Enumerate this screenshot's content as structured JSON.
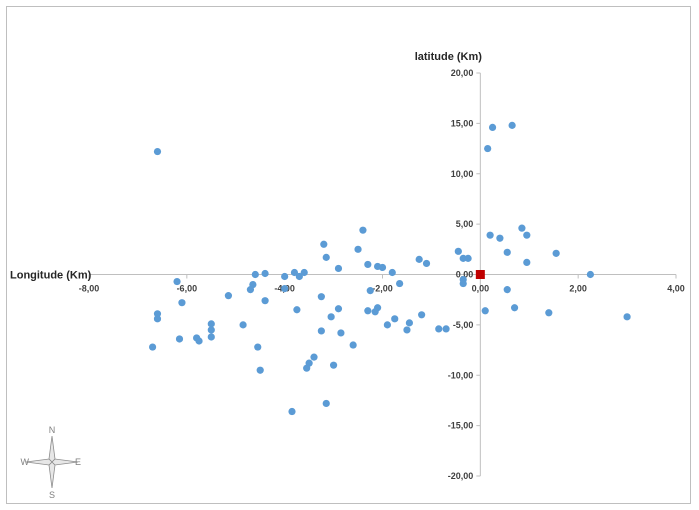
{
  "chart_data": {
    "type": "scatter",
    "title": "",
    "xlabel": "Longitude (Km)",
    "ylabel": "latitude (Km)",
    "xlim": [
      -8,
      4
    ],
    "ylim": [
      -20,
      20
    ],
    "x_ticks": [
      -8,
      -6,
      -4,
      -2,
      0,
      2,
      4
    ],
    "y_ticks": [
      -20,
      -15,
      -10,
      -5,
      0,
      5,
      10,
      15,
      20
    ],
    "x_tick_labels": [
      "-8,00",
      "-6,00",
      "-4,00",
      "-2,00",
      "0,00",
      "2,00",
      "4,00"
    ],
    "y_tick_labels": [
      "-20,00",
      "-15,00",
      "-10,00",
      "-5,00",
      "0,00",
      "5,00",
      "10,00",
      "15,00",
      "20,00"
    ],
    "grid": false,
    "legend": "none",
    "series": [
      {
        "color": "#5b9bd5",
        "marker": "circle",
        "points": [
          [
            -6.6,
            12.2
          ],
          [
            0.25,
            14.6
          ],
          [
            0.65,
            14.8
          ],
          [
            0.15,
            12.5
          ],
          [
            -2.4,
            4.4
          ],
          [
            -3.2,
            3.0
          ],
          [
            -3.15,
            1.7
          ],
          [
            -2.5,
            2.5
          ],
          [
            -2.3,
            1.0
          ],
          [
            -2.1,
            0.8
          ],
          [
            -2.0,
            0.7
          ],
          [
            -2.9,
            0.6
          ],
          [
            -3.6,
            0.2
          ],
          [
            -3.8,
            0.2
          ],
          [
            -4.0,
            -0.2
          ],
          [
            -4.4,
            0.1
          ],
          [
            -4.6,
            0.0
          ],
          [
            -3.7,
            -0.2
          ],
          [
            -1.8,
            0.2
          ],
          [
            -1.25,
            1.5
          ],
          [
            -1.1,
            1.1
          ],
          [
            -0.45,
            2.3
          ],
          [
            -0.35,
            1.6
          ],
          [
            -0.25,
            1.6
          ],
          [
            0.2,
            3.9
          ],
          [
            0.4,
            3.6
          ],
          [
            0.55,
            2.2
          ],
          [
            0.85,
            4.6
          ],
          [
            0.95,
            3.9
          ],
          [
            0.95,
            1.2
          ],
          [
            1.55,
            2.1
          ],
          [
            2.25,
            0.0
          ],
          [
            0.55,
            -1.5
          ],
          [
            -0.35,
            -0.5
          ],
          [
            -0.35,
            -0.9
          ],
          [
            -2.25,
            -1.6
          ],
          [
            -1.65,
            -0.9
          ],
          [
            -6.2,
            -0.7
          ],
          [
            -6.1,
            -2.8
          ],
          [
            -5.15,
            -2.1
          ],
          [
            -4.65,
            -1.0
          ],
          [
            -4.4,
            -2.6
          ],
          [
            -4.0,
            -1.4
          ],
          [
            -3.75,
            -3.5
          ],
          [
            -3.25,
            -2.2
          ],
          [
            -3.05,
            -4.2
          ],
          [
            -2.9,
            -3.4
          ],
          [
            -2.3,
            -3.6
          ],
          [
            -2.15,
            -3.7
          ],
          [
            -2.1,
            -3.3
          ],
          [
            -6.6,
            -3.9
          ],
          [
            -6.6,
            -4.4
          ],
          [
            -5.5,
            -4.9
          ],
          [
            -5.5,
            -5.5
          ],
          [
            -4.85,
            -5.0
          ],
          [
            -3.25,
            -5.6
          ],
          [
            -2.85,
            -5.8
          ],
          [
            -1.9,
            -5.0
          ],
          [
            -1.75,
            -4.4
          ],
          [
            -1.5,
            -5.5
          ],
          [
            -1.45,
            -4.8
          ],
          [
            -1.2,
            -4.0
          ],
          [
            -0.85,
            -5.4
          ],
          [
            -0.7,
            -5.4
          ],
          [
            0.1,
            -3.6
          ],
          [
            0.7,
            -3.3
          ],
          [
            1.4,
            -3.8
          ],
          [
            3.0,
            -4.2
          ],
          [
            -6.15,
            -6.4
          ],
          [
            -5.8,
            -6.3
          ],
          [
            -5.75,
            -6.6
          ],
          [
            -5.5,
            -6.2
          ],
          [
            -6.7,
            -7.2
          ],
          [
            -4.55,
            -7.2
          ],
          [
            -3.4,
            -8.2
          ],
          [
            -3.5,
            -8.8
          ],
          [
            -3.55,
            -9.3
          ],
          [
            -3.0,
            -9.0
          ],
          [
            -2.6,
            -7.0
          ],
          [
            -4.5,
            -9.5
          ],
          [
            -3.85,
            -13.6
          ],
          [
            -3.15,
            -12.8
          ],
          [
            -4.7,
            -1.5
          ]
        ]
      },
      {
        "color": "#c00000",
        "marker": "square",
        "points": [
          [
            0.0,
            0.0
          ]
        ]
      }
    ]
  },
  "compass": {
    "north": "N",
    "south": "S",
    "east": "E",
    "west": "W"
  }
}
